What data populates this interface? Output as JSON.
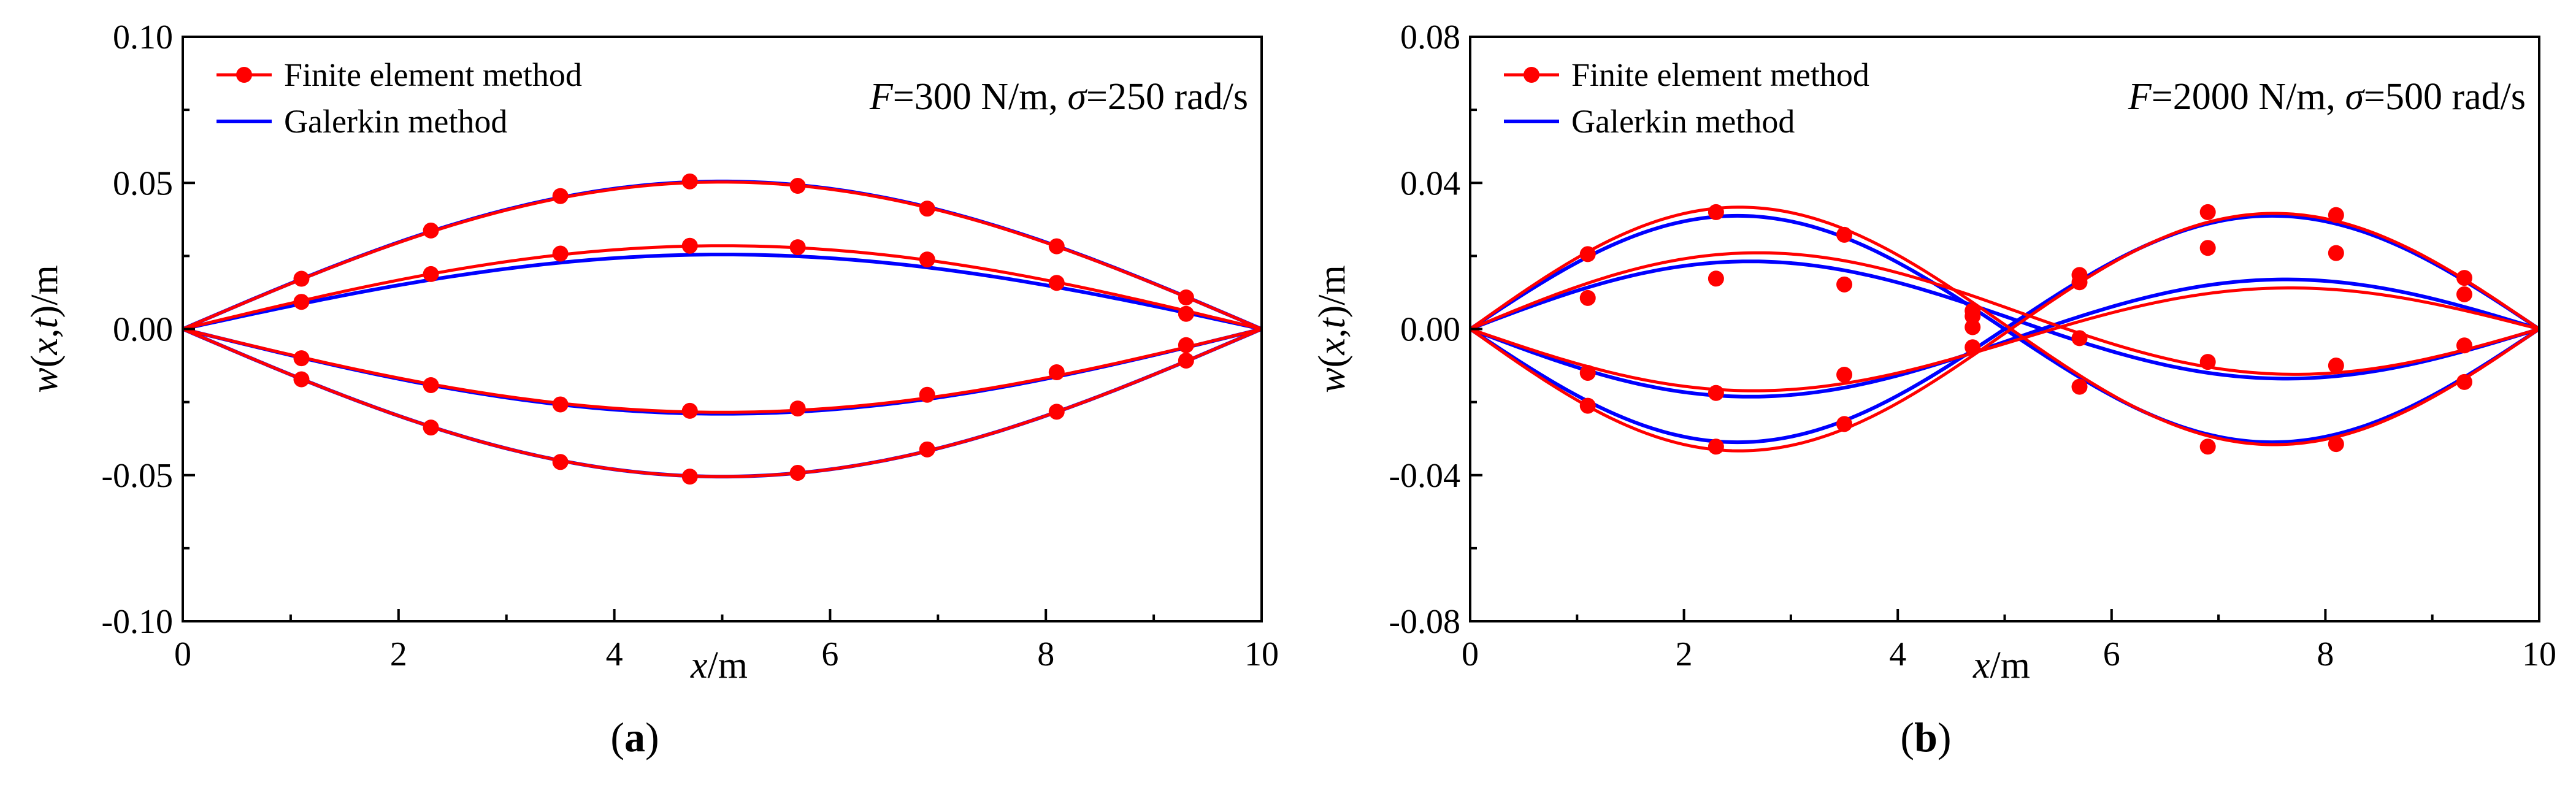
{
  "colors": {
    "fem": "#ff0000",
    "galerkin": "#0000ff",
    "axis": "#000000"
  },
  "chart_data": [
    {
      "type": "line",
      "caption": {
        "open": "(",
        "letter": "a",
        "close": ")"
      },
      "xlabel": {
        "var": "x",
        "unit": "/m"
      },
      "ylabel": {
        "var": "w",
        "open": "(",
        "arg1": "x",
        "comma": ",",
        "arg2": "t",
        "close": ")",
        "unit": "/m"
      },
      "xlim": [
        0,
        10
      ],
      "ylim": [
        -0.1,
        0.1
      ],
      "xticks": [
        0,
        2,
        4,
        6,
        8,
        10
      ],
      "xtick_labels": [
        "0",
        "2",
        "4",
        "6",
        "8",
        "10"
      ],
      "yticks": [
        -0.1,
        -0.05,
        0.0,
        0.05,
        0.1
      ],
      "ytick_labels": [
        "-0.10",
        "-0.05",
        "0.00",
        "0.05",
        "0.10"
      ],
      "legend": {
        "placement": "top-left",
        "entries": [
          "Finite element method",
          "Galerkin method"
        ]
      },
      "annotation": {
        "f_var": "F",
        "f_val": "=300 N/m, ",
        "s_var": "σ",
        "s_val": "=250 rad/s"
      },
      "marker_x": [
        1.1,
        2.3,
        3.5,
        4.7,
        5.7,
        6.9,
        8.1,
        9.3
      ],
      "series": [
        {
          "name": "Galerkin method",
          "shape": "sin1",
          "amplitude": 0.0505
        },
        {
          "name": "Galerkin method",
          "shape": "sin1",
          "amplitude": 0.0255
        },
        {
          "name": "Galerkin method",
          "shape": "sin1",
          "amplitude": -0.029
        },
        {
          "name": "Galerkin method",
          "shape": "sin1",
          "amplitude": -0.0505
        },
        {
          "name": "Finite element method",
          "shape": "sin1",
          "amplitude": 0.0503,
          "markers": [
            0.0172,
            0.0337,
            0.0455,
            0.0505,
            0.049,
            0.0412,
            0.0283,
            0.0108
          ]
        },
        {
          "name": "Finite element method",
          "shape": "sin1",
          "amplitude": 0.0285,
          "markers": [
            0.0093,
            0.0188,
            0.0258,
            0.0285,
            0.028,
            0.0238,
            0.0158,
            0.0052
          ]
        },
        {
          "name": "Finite element method",
          "shape": "sin1",
          "amplitude": -0.0285,
          "markers": [
            -0.01,
            -0.0192,
            -0.0258,
            -0.028,
            -0.0272,
            -0.0225,
            -0.0148,
            -0.0055
          ]
        },
        {
          "name": "Finite element method",
          "shape": "sin1",
          "amplitude": -0.0505,
          "markers": [
            -0.0172,
            -0.0337,
            -0.0455,
            -0.0505,
            -0.0492,
            -0.0412,
            -0.0283,
            -0.0108
          ]
        }
      ]
    },
    {
      "type": "line",
      "caption": {
        "open": "(",
        "letter": "b",
        "close": ")"
      },
      "xlabel": {
        "var": "x",
        "unit": "/m"
      },
      "ylabel": {
        "var": "w",
        "open": "(",
        "arg1": "x",
        "comma": ",",
        "arg2": "t",
        "close": ")",
        "unit": "/m"
      },
      "xlim": [
        0,
        10
      ],
      "ylim": [
        -0.08,
        0.08
      ],
      "xticks": [
        0,
        2,
        4,
        6,
        8,
        10
      ],
      "xtick_labels": [
        "0",
        "2",
        "4",
        "6",
        "8",
        "10"
      ],
      "yticks": [
        -0.08,
        -0.04,
        0.0,
        0.04,
        0.08
      ],
      "ytick_labels": [
        "-0.08",
        "-0.04",
        "0.00",
        "0.04",
        "0.08"
      ],
      "legend": {
        "placement": "top-left",
        "entries": [
          "Finite element method",
          "Galerkin method"
        ]
      },
      "annotation": {
        "f_var": "F",
        "f_val": "=2000 N/m, ",
        "s_var": "σ",
        "s_val": "=500 rad/s"
      },
      "marker_x": [
        1.1,
        2.3,
        3.5,
        4.7,
        5.7,
        6.9,
        8.1,
        9.3
      ],
      "series": [
        {
          "name": "Galerkin method",
          "shape": "sin2",
          "amplitude": 0.031
        },
        {
          "name": "Galerkin method",
          "shape": "sin2",
          "amplitude": -0.031
        },
        {
          "name": "Galerkin method",
          "shape": "mix",
          "a1": 0.0035,
          "a2": 0.016
        },
        {
          "name": "Galerkin method",
          "shape": "mix",
          "a1": -0.0035,
          "a2": -0.016
        },
        {
          "name": "Finite element method",
          "shape": "mix",
          "a1": 0.0012,
          "a2": 0.0325,
          "markers": [
            0.0205,
            0.032,
            0.0258,
            0.005,
            0.0148,
            0.032,
            0.0312,
            0.014
          ]
        },
        {
          "name": "Finite element method",
          "shape": "mix",
          "a1": -0.0012,
          "a2": -0.0325,
          "markers": [
            -0.021,
            -0.0322,
            -0.026,
            -0.005,
            -0.0158,
            -0.0322,
            -0.0315,
            -0.0145
          ]
        },
        {
          "name": "Finite element method",
          "shape": "mix",
          "a1": 0.006,
          "a2": 0.0165,
          "markers": [
            0.0085,
            0.0138,
            0.0122,
            0.0005,
            0.0128,
            0.0222,
            0.0208,
            0.0095
          ]
        },
        {
          "name": "Finite element method",
          "shape": "mix",
          "a1": -0.004,
          "a2": -0.014,
          "markers": [
            -0.012,
            -0.0175,
            -0.0125,
            0.0035,
            -0.0025,
            -0.009,
            -0.01,
            -0.0045
          ]
        }
      ]
    }
  ]
}
